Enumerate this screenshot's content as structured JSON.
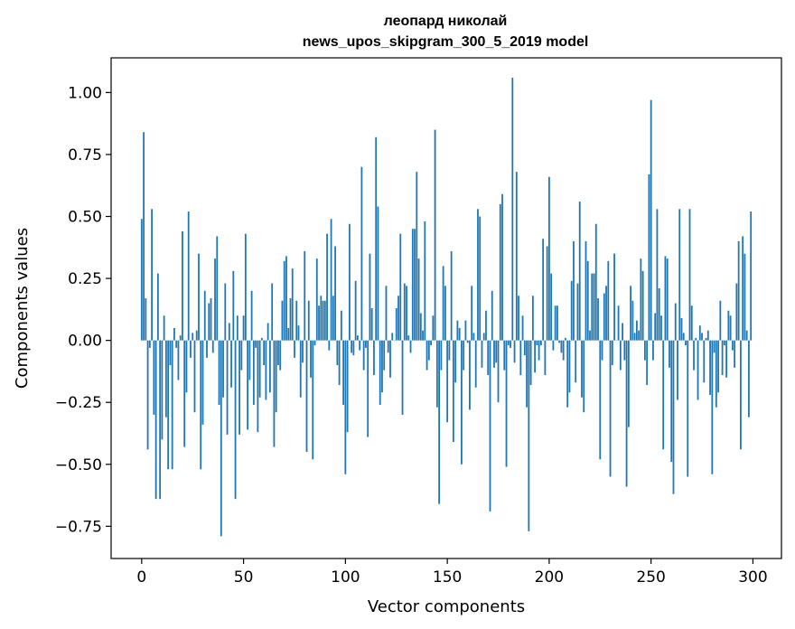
{
  "chart_data": {
    "type": "bar",
    "title_line1": "леопард николай",
    "title_line2": "news_upos_skipgram_300_5_2019 model",
    "xlabel": "Vector components",
    "ylabel": "Components values",
    "xlim": [
      -15,
      314
    ],
    "ylim": [
      -0.88,
      1.14
    ],
    "xticks": [
      0,
      50,
      100,
      150,
      200,
      250,
      300
    ],
    "xtick_labels": [
      "0",
      "50",
      "100",
      "150",
      "200",
      "250",
      "300"
    ],
    "yticks": [
      1.0,
      0.75,
      0.5,
      0.25,
      0.0,
      -0.25,
      -0.5,
      -0.75
    ],
    "ytick_labels": [
      "1.00",
      "0.75",
      "0.50",
      "0.25",
      "0.00",
      "−0.25",
      "−0.50",
      "−0.75"
    ],
    "grid": false,
    "bar_color": "#1f77b4",
    "values": [
      0.49,
      0.84,
      0.17,
      -0.44,
      -0.03,
      0.53,
      -0.3,
      -0.64,
      0.27,
      -0.64,
      -0.4,
      0.1,
      -0.31,
      -0.52,
      -0.1,
      -0.52,
      0.05,
      -0.03,
      -0.16,
      0.02,
      0.44,
      -0.43,
      -0.21,
      0.52,
      -0.07,
      0.03,
      -0.29,
      0.04,
      0.35,
      -0.52,
      -0.34,
      0.2,
      -0.07,
      0.15,
      0.17,
      -0.05,
      0.33,
      0.42,
      -0.26,
      -0.79,
      -0.23,
      0.23,
      -0.38,
      0.07,
      -0.19,
      0.28,
      -0.64,
      0.1,
      -0.38,
      -0.12,
      0.1,
      0.43,
      -0.36,
      -0.16,
      0.2,
      -0.26,
      -0.03,
      -0.37,
      -0.23,
      0.01,
      -0.1,
      -0.24,
      0.07,
      -0.21,
      0.23,
      -0.43,
      -0.29,
      -0.1,
      -0.12,
      0.16,
      0.32,
      0.34,
      0.05,
      0.17,
      0.29,
      -0.07,
      0.16,
      0.06,
      -0.23,
      -0.09,
      0.36,
      -0.45,
      0.16,
      -0.15,
      -0.48,
      -0.02,
      0.33,
      0.14,
      0.18,
      0.16,
      0.16,
      0.43,
      -0.04,
      0.49,
      0.18,
      0.38,
      -0.1,
      -0.18,
      0.12,
      -0.26,
      -0.54,
      -0.37,
      0.47,
      -0.05,
      -0.06,
      0.24,
      0.02,
      -0.04,
      0.7,
      -0.12,
      -0.03,
      -0.39,
      0.35,
      0.13,
      -0.14,
      0.82,
      0.54,
      -0.26,
      -0.21,
      -0.12,
      0.22,
      -0.05,
      -0.15,
      0.03,
      0.0,
      0.13,
      0.18,
      0.43,
      -0.3,
      0.23,
      0.22,
      0.02,
      -0.05,
      0.45,
      0.45,
      0.68,
      0.33,
      0.11,
      0.04,
      0.48,
      -0.12,
      -0.08,
      -0.02,
      0.1,
      0.85,
      -0.27,
      -0.66,
      -0.12,
      0.3,
      0.22,
      -0.33,
      -0.08,
      0.36,
      -0.41,
      -0.17,
      0.08,
      0.05,
      -0.5,
      -0.12,
      0.08,
      -0.01,
      -0.28,
      0.22,
      0.03,
      -0.19,
      0.53,
      0.5,
      -0.11,
      0.03,
      0.12,
      -0.14,
      -0.69,
      0.2,
      -0.11,
      -0.09,
      -0.25,
      0.55,
      0.59,
      -0.12,
      -0.51,
      -0.02,
      -0.03,
      1.06,
      -0.09,
      0.68,
      0.18,
      -0.14,
      0.1,
      -0.06,
      -0.27,
      -0.77,
      -0.18,
      0.18,
      -0.13,
      -0.02,
      -0.08,
      -0.02,
      0.41,
      -0.14,
      0.38,
      0.66,
      0.27,
      -0.04,
      0.14,
      0.14,
      -0.01,
      -0.05,
      -0.08,
      0.01,
      -0.27,
      -0.21,
      0.24,
      0.4,
      -0.17,
      0.23,
      0.56,
      -0.23,
      -0.29,
      0.4,
      0.32,
      0.04,
      0.27,
      0.27,
      0.47,
      0.17,
      -0.48,
      -0.08,
      0.19,
      0.22,
      0.32,
      -0.55,
      -0.1,
      0.35,
      0.0,
      0.14,
      -0.12,
      0.07,
      -0.08,
      -0.59,
      -0.35,
      0.22,
      0.16,
      0.03,
      0.08,
      0.04,
      0.33,
      0.28,
      -0.08,
      -0.18,
      0.67,
      0.97,
      -0.08,
      0.11,
      0.53,
      0.21,
      0.1,
      -0.44,
      0.34,
      0.33,
      -0.11,
      -0.49,
      -0.62,
      0.15,
      -0.24,
      0.53,
      0.09,
      0.03,
      -0.02,
      -0.55,
      0.53,
      0.14,
      -0.12,
      0.01,
      -0.24,
      0.06,
      0.03,
      -0.17,
      0.01,
      0.04,
      -0.22,
      -0.54,
      -0.05,
      -0.27,
      -0.21,
      0.16,
      -0.14,
      -0.02,
      -0.15,
      0.12,
      0.1,
      -0.04,
      -0.11,
      0.23,
      0.4,
      -0.44,
      0.42,
      0.35,
      0.04,
      -0.31,
      0.52
    ]
  }
}
